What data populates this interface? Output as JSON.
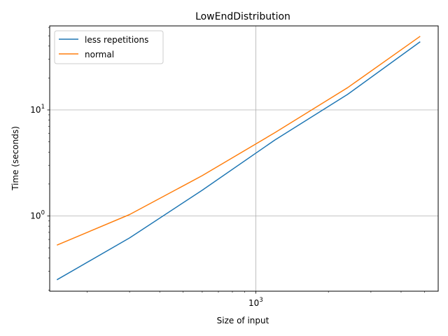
{
  "chart_data": {
    "type": "line",
    "title": "LowEndDistribution",
    "xlabel": "Size of input",
    "ylabel": "Time (seconds)",
    "x_scale": "log",
    "y_scale": "log",
    "xlim": [
      140,
      5700
    ],
    "ylim": [
      0.195,
      62
    ],
    "x_major_ticks": [
      {
        "value": 1000,
        "base": "10",
        "exp": "3"
      }
    ],
    "y_major_ticks": [
      {
        "value": 1,
        "base": "10",
        "exp": "0"
      },
      {
        "value": 10,
        "base": "10",
        "exp": "1"
      }
    ],
    "x": [
      150,
      300,
      600,
      1200,
      2400,
      4800
    ],
    "series": [
      {
        "name": "less repetitions",
        "color": "#1f77b4",
        "values": [
          0.25,
          0.62,
          1.75,
          5.2,
          14.0,
          44.0
        ]
      },
      {
        "name": "normal",
        "color": "#ff7f0e",
        "values": [
          0.53,
          1.03,
          2.4,
          6.1,
          16.2,
          49.5
        ]
      }
    ],
    "grid": true,
    "legend": "upper-left"
  }
}
